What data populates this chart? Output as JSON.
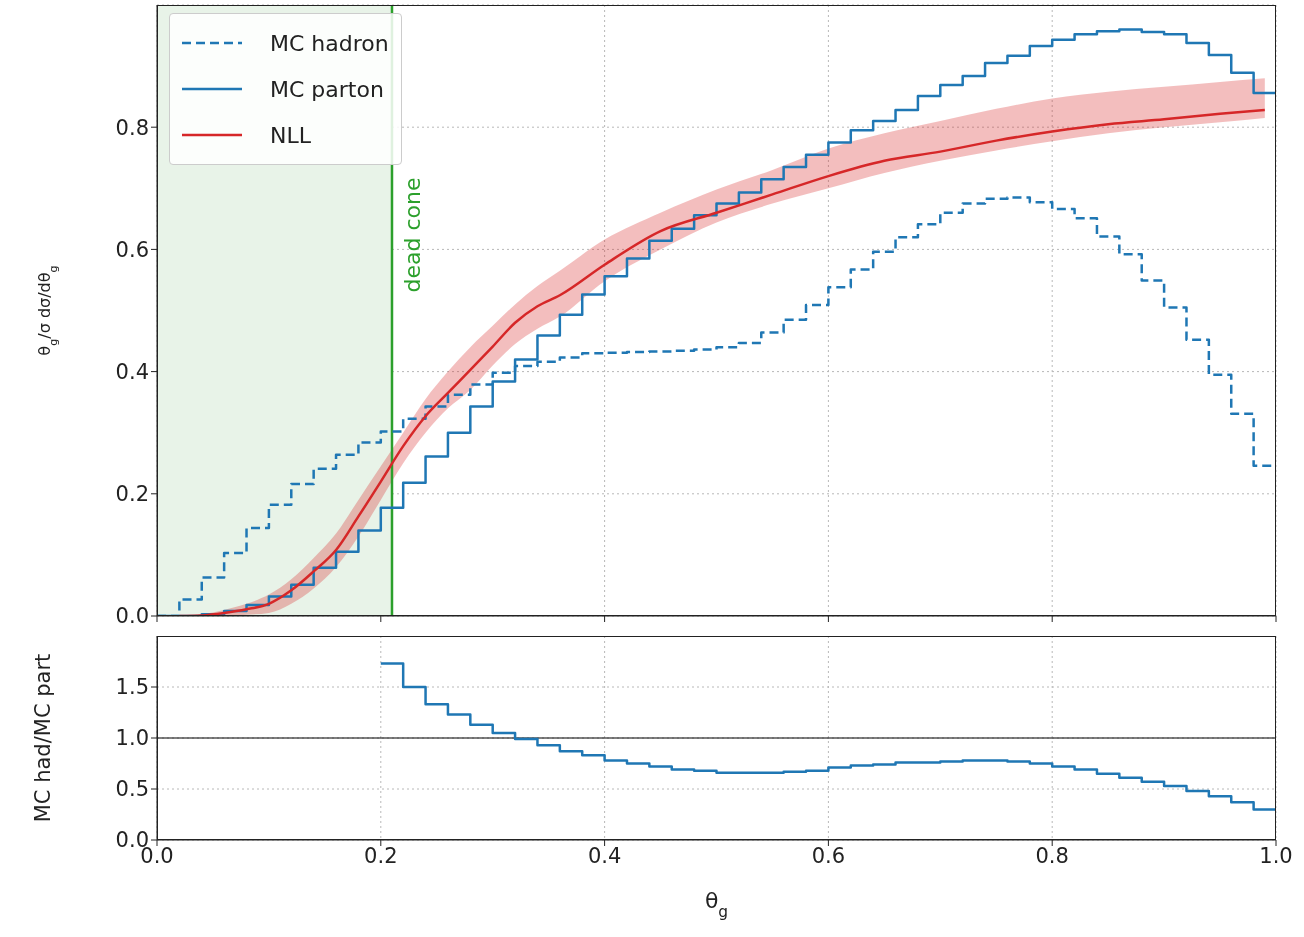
{
  "chart_data": [
    {
      "type": "histogram",
      "ylabel": "θ$_{g}$/σ dσ/dθ$_{g}$",
      "bins": [
        0,
        0.02,
        0.04,
        0.06,
        0.08,
        0.1,
        0.12,
        0.14,
        0.16,
        0.18,
        0.2,
        0.22,
        0.24,
        0.26,
        0.28,
        0.3,
        0.32,
        0.34,
        0.36,
        0.38,
        0.4,
        0.42,
        0.44,
        0.46,
        0.48,
        0.5,
        0.52,
        0.54,
        0.56,
        0.58,
        0.6,
        0.62,
        0.64,
        0.66,
        0.68,
        0.7,
        0.72,
        0.74,
        0.76,
        0.78,
        0.8,
        0.82,
        0.84,
        0.86,
        0.88,
        0.9,
        0.92,
        0.94,
        0.96,
        0.98,
        1.0
      ],
      "series": [
        {
          "name": "MC hadron",
          "color": "#1f77b4",
          "line_style": "dashed",
          "values": [
            0,
            0.027,
            0.063,
            0.103,
            0.144,
            0.182,
            0.216,
            0.241,
            0.264,
            0.284,
            0.302,
            0.323,
            0.343,
            0.362,
            0.379,
            0.398,
            0.409,
            0.416,
            0.423,
            0.43,
            0.431,
            0.432,
            0.433,
            0.434,
            0.436,
            0.44,
            0.447,
            0.464,
            0.485,
            0.509,
            0.538,
            0.567,
            0.596,
            0.62,
            0.641,
            0.66,
            0.675,
            0.683,
            0.685,
            0.677,
            0.666,
            0.651,
            0.621,
            0.592,
            0.549,
            0.505,
            0.452,
            0.395,
            0.331,
            0.246
          ]
        },
        {
          "name": "MC parton",
          "color": "#1f77b4",
          "line_style": "solid",
          "values": [
            0,
            0,
            0.003,
            0.008,
            0.018,
            0.032,
            0.051,
            0.079,
            0.105,
            0.14,
            0.177,
            0.218,
            0.261,
            0.3,
            0.343,
            0.384,
            0.42,
            0.459,
            0.493,
            0.526,
            0.556,
            0.585,
            0.614,
            0.634,
            0.656,
            0.675,
            0.693,
            0.715,
            0.735,
            0.755,
            0.775,
            0.795,
            0.81,
            0.828,
            0.851,
            0.869,
            0.884,
            0.905,
            0.917,
            0.933,
            0.943,
            0.952,
            0.957,
            0.96,
            0.956,
            0.952,
            0.938,
            0.918,
            0.889,
            0.856
          ]
        },
        {
          "name": "NLL",
          "type": "line",
          "color": "#d62728",
          "line_style": "solid",
          "x": [
            0.02,
            0.04,
            0.06,
            0.08,
            0.1,
            0.12,
            0.14,
            0.16,
            0.18,
            0.2,
            0.22,
            0.24,
            0.26,
            0.28,
            0.3,
            0.32,
            0.34,
            0.36,
            0.4,
            0.45,
            0.5,
            0.55,
            0.6,
            0.65,
            0.7,
            0.75,
            0.8,
            0.85,
            0.9,
            0.95,
            0.99
          ],
          "values": [
            0,
            0.001,
            0.005,
            0.011,
            0.02,
            0.042,
            0.073,
            0.108,
            0.163,
            0.22,
            0.278,
            0.327,
            0.365,
            0.403,
            0.441,
            0.48,
            0.507,
            0.525,
            0.575,
            0.63,
            0.66,
            0.69,
            0.72,
            0.745,
            0.76,
            0.778,
            0.793,
            0.805,
            0.813,
            0.822,
            0.828
          ],
          "lower": [
            0,
            0,
            0,
            0.002,
            0.005,
            0.02,
            0.045,
            0.08,
            0.13,
            0.19,
            0.25,
            0.3,
            0.34,
            0.37,
            0.41,
            0.445,
            0.47,
            0.49,
            0.548,
            0.6,
            0.644,
            0.675,
            0.7,
            0.725,
            0.745,
            0.762,
            0.777,
            0.79,
            0.8,
            0.808,
            0.815
          ],
          "upper": [
            0,
            0.003,
            0.01,
            0.02,
            0.035,
            0.06,
            0.095,
            0.135,
            0.19,
            0.245,
            0.3,
            0.355,
            0.4,
            0.44,
            0.475,
            0.51,
            0.54,
            0.565,
            0.616,
            0.66,
            0.698,
            0.73,
            0.765,
            0.79,
            0.81,
            0.83,
            0.847,
            0.858,
            0.866,
            0.874,
            0.88
          ]
        }
      ],
      "xlim": [
        0,
        1.0
      ],
      "xticks": [
        0,
        0.2,
        0.4,
        0.6,
        0.8,
        1.0
      ],
      "ylim": [
        0,
        1.0
      ],
      "yticks": [
        {
          "value": 0,
          "label": "0.0"
        },
        {
          "value": 0.2,
          "label": "0.2"
        },
        {
          "value": 0.4,
          "label": "0.4"
        },
        {
          "value": 0.6,
          "label": "0.6"
        },
        {
          "value": 0.8,
          "label": "0.8"
        }
      ],
      "tick_labels": "y",
      "grid": true,
      "legend": "top left",
      "bands": [
        {
          "axis": "x",
          "from": 0,
          "to": 0.21,
          "color": "#e8f3e8"
        }
      ],
      "ref_lines": [
        {
          "axis": "x",
          "value": 0.21,
          "label": "dead cone",
          "color": "#2ca02c"
        }
      ]
    },
    {
      "type": "histogram",
      "xlabel": "θ$_{g}$",
      "ylabel": "MC had/MC part",
      "bins": [
        0.2,
        0.22,
        0.24,
        0.26,
        0.28,
        0.3,
        0.32,
        0.34,
        0.36,
        0.38,
        0.4,
        0.42,
        0.44,
        0.46,
        0.48,
        0.5,
        0.52,
        0.54,
        0.56,
        0.58,
        0.6,
        0.62,
        0.64,
        0.66,
        0.68,
        0.7,
        0.72,
        0.74,
        0.76,
        0.78,
        0.8,
        0.82,
        0.84,
        0.86,
        0.88,
        0.9,
        0.92,
        0.94,
        0.96,
        0.98,
        1.0
      ],
      "series": [
        {
          "color": "#1f77b4",
          "line_style": "solid",
          "values": [
            1.73,
            1.5,
            1.33,
            1.23,
            1.13,
            1.05,
            0.99,
            0.93,
            0.87,
            0.83,
            0.78,
            0.75,
            0.72,
            0.69,
            0.68,
            0.66,
            0.66,
            0.66,
            0.67,
            0.68,
            0.71,
            0.73,
            0.74,
            0.76,
            0.76,
            0.77,
            0.78,
            0.78,
            0.77,
            0.75,
            0.72,
            0.69,
            0.65,
            0.61,
            0.57,
            0.53,
            0.48,
            0.43,
            0.37,
            0.3
          ]
        }
      ],
      "xlim": [
        0,
        1.0
      ],
      "xticks": [
        {
          "value": 0,
          "label": "0.0"
        },
        {
          "value": 0.2,
          "label": "0.2"
        },
        {
          "value": 0.4,
          "label": "0.4"
        },
        {
          "value": 0.6,
          "label": "0.6"
        },
        {
          "value": 0.8,
          "label": "0.8"
        },
        {
          "value": 1.0,
          "label": "1.0"
        }
      ],
      "ylim": [
        0,
        2.0
      ],
      "yticks": [
        {
          "value": 0,
          "label": "0.0"
        },
        {
          "value": 0.5,
          "label": "0.5"
        },
        {
          "value": 1.0,
          "label": "1.0"
        },
        {
          "value": 1.5,
          "label": "1.5"
        }
      ],
      "grid": true,
      "ref_lines": [
        {
          "axis": "y",
          "value": 1.0,
          "color": "#000000"
        }
      ]
    }
  ]
}
